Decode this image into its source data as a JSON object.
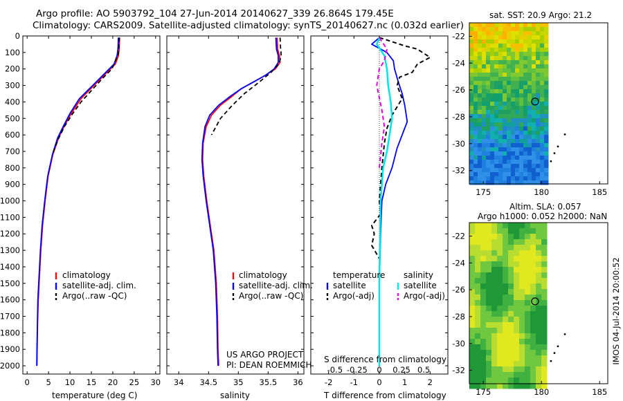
{
  "header": {
    "line1": "Argo profile: AO 5903792_104 27-Jun-2014 20140627_339 26.864S 179.45E",
    "line2": "Climatology: CARS2009. Satellite-adjusted climatology: synTS_20140627.nc (0.032d earlier)"
  },
  "side_label": "IMOS 04-Jul-2014 20:00:52",
  "colors": {
    "climatology": "#ff0000",
    "satellite": "#0000ff",
    "argo": "#000000",
    "salinity_sat": "#00e5e5",
    "salinity_argo": "#e000e0"
  },
  "chart_data": [
    {
      "type": "line",
      "name": "temperature",
      "xlabel": "temperature (deg C)",
      "xlim": [
        -1,
        31
      ],
      "xticks": [
        "0",
        "5",
        "10",
        "15",
        "20",
        "25",
        "30"
      ],
      "ylim": [
        0,
        2050
      ],
      "yticks": [
        "0",
        "100",
        "200",
        "300",
        "400",
        "500",
        "600",
        "700",
        "800",
        "900",
        "1000",
        "1100",
        "1200",
        "1300",
        "1400",
        "1500",
        "1600",
        "1700",
        "1800",
        "1900",
        "2000"
      ],
      "legend": [
        "climatology",
        "satellite-adj. clim.",
        "Argo(..raw -QC)"
      ],
      "series": [
        {
          "name": "climatology",
          "x": [
            21.6,
            21.5,
            21.3,
            20.6,
            18.3,
            15.6,
            12.6,
            10.3,
            8.6,
            7.3,
            6.0,
            4.9,
            4.2,
            3.6,
            3.2,
            2.9,
            2.6,
            2.45,
            2.35,
            2.3
          ],
          "y": [
            10,
            80,
            120,
            170,
            230,
            300,
            380,
            470,
            550,
            620,
            720,
            850,
            1000,
            1150,
            1300,
            1450,
            1600,
            1750,
            1900,
            2000
          ]
        },
        {
          "name": "satellite",
          "x": [
            21.3,
            21.2,
            21.0,
            20.3,
            18.0,
            15.3,
            12.2,
            10.0,
            8.4,
            7.1,
            5.9,
            4.8,
            4.1,
            3.5,
            3.1,
            2.8,
            2.5,
            2.4,
            2.3,
            2.25
          ],
          "y": [
            10,
            80,
            120,
            170,
            230,
            300,
            380,
            470,
            550,
            620,
            720,
            850,
            1000,
            1150,
            1300,
            1450,
            1600,
            1750,
            1900,
            2000
          ]
        },
        {
          "name": "argo",
          "x": [
            21.5,
            21.4,
            21.2,
            20.6,
            19.8,
            17.5,
            15.4,
            12.6,
            10.4,
            8.7,
            7.2,
            5.9
          ],
          "y": [
            10,
            80,
            120,
            150,
            200,
            260,
            320,
            400,
            480,
            550,
            630,
            720
          ]
        }
      ]
    },
    {
      "type": "line",
      "name": "salinity",
      "xlabel": "salinity",
      "xlim": [
        33.8,
        36.1
      ],
      "xticks": [
        "34",
        "34.5",
        "35",
        "35.5",
        "36"
      ],
      "ylim": [
        0,
        2050
      ],
      "legend": [
        "climatology",
        "satellite-adj. clim.",
        "Argo(..raw -QC)"
      ],
      "footnote": [
        "US ARGO PROJECT",
        "PI: DEAN ROEMMICH"
      ],
      "series": [
        {
          "name": "climatology",
          "x": [
            35.65,
            35.66,
            35.69,
            35.7,
            35.62,
            35.45,
            35.25,
            35.05,
            34.88,
            34.7,
            34.55,
            34.46,
            34.41,
            34.4,
            34.42,
            34.47,
            34.53,
            34.59,
            34.63,
            34.65,
            34.66,
            34.67
          ],
          "y": [
            10,
            80,
            120,
            160,
            200,
            240,
            280,
            320,
            370,
            420,
            480,
            550,
            650,
            750,
            850,
            1000,
            1150,
            1300,
            1500,
            1700,
            1900,
            2000
          ]
        },
        {
          "name": "satellite",
          "x": [
            35.63,
            35.64,
            35.67,
            35.67,
            35.6,
            35.45,
            35.25,
            35.05,
            34.85,
            34.67,
            34.52,
            34.44,
            34.4,
            34.39,
            34.41,
            34.46,
            34.52,
            34.58,
            34.62,
            34.64,
            34.65,
            34.66
          ],
          "y": [
            10,
            80,
            120,
            160,
            200,
            240,
            280,
            320,
            370,
            420,
            480,
            550,
            650,
            750,
            850,
            1000,
            1150,
            1300,
            1500,
            1700,
            1900,
            2000
          ]
        },
        {
          "name": "argo",
          "x": [
            35.7,
            35.71,
            35.72,
            35.68,
            35.55,
            35.35,
            35.1,
            34.9,
            34.7,
            34.55
          ],
          "y": [
            10,
            80,
            120,
            170,
            220,
            280,
            350,
            420,
            500,
            600
          ]
        }
      ]
    },
    {
      "type": "line",
      "name": "difference",
      "xlabel": "T difference from climatology",
      "xlabel_top": "S difference from climatology",
      "xlim": [
        -2.7,
        2.7
      ],
      "xticks": [
        "-2",
        "-1",
        "0",
        "1",
        "2"
      ],
      "xticks_top": [
        "-0.5",
        "-0.25",
        "0",
        "0.25",
        "0.5"
      ],
      "ylim": [
        0,
        2050
      ],
      "legend_groups": [
        "temperature",
        "salinity"
      ],
      "legend": [
        "satellite",
        "Argo(-adj)",
        "satellite",
        "Argo(-adj)"
      ],
      "series": [
        {
          "name": "temperature satellite",
          "x": [
            0,
            -0.3,
            0.3,
            0.55,
            0.6,
            0.75,
            0.9,
            1.0,
            1.1,
            0.9,
            0.7,
            0.5,
            0.25,
            0.1,
            0.05,
            0,
            0
          ],
          "y": [
            10,
            50,
            100,
            150,
            200,
            280,
            350,
            420,
            520,
            600,
            680,
            800,
            900,
            1000,
            1200,
            1500,
            2000
          ]
        },
        {
          "name": "temperature argo",
          "x": [
            0,
            1.0,
            1.5,
            2.0,
            1.5,
            1.3,
            0.8,
            0.7,
            0.9,
            0.5,
            0.3,
            0.2,
            0.1,
            0,
            0.05,
            -0.3,
            -0.2,
            -0.3,
            0
          ],
          "y": [
            10,
            60,
            80,
            130,
            170,
            220,
            250,
            300,
            380,
            480,
            560,
            650,
            800,
            1000,
            1080,
            1150,
            1200,
            1270,
            1350
          ]
        },
        {
          "name": "salinity satellite",
          "x": [
            0,
            -0.1,
            0.2,
            0.3,
            0.35,
            0.45,
            0.5,
            0.4,
            0.3,
            0.15,
            0.05,
            0,
            0
          ],
          "y": [
            10,
            50,
            120,
            200,
            300,
            400,
            500,
            600,
            700,
            800,
            1000,
            1500,
            2000
          ]
        },
        {
          "name": "salinity argo",
          "x": [
            0,
            0.3,
            0.2,
            0.0,
            -0.1,
            0.1,
            0.2,
            0.1,
            0
          ],
          "y": [
            10,
            80,
            150,
            200,
            300,
            450,
            550,
            650,
            800
          ]
        }
      ]
    }
  ],
  "sst_panel": {
    "title": "sat. SST: 20.9 Argo: 21.2",
    "yticks": [
      "-22",
      "-24",
      "-26",
      "-28",
      "-30",
      "-32"
    ],
    "xticks": [
      "175",
      "180",
      "185"
    ]
  },
  "sla_panel": {
    "title1": "Altim. SLA: 0.057",
    "title2": "Argo h1000: 0.052 h2000: NaN",
    "yticks": [
      "-22",
      "-24",
      "-26",
      "-28",
      "-30",
      "-32"
    ],
    "xticks": [
      "175",
      "180",
      "185"
    ]
  }
}
